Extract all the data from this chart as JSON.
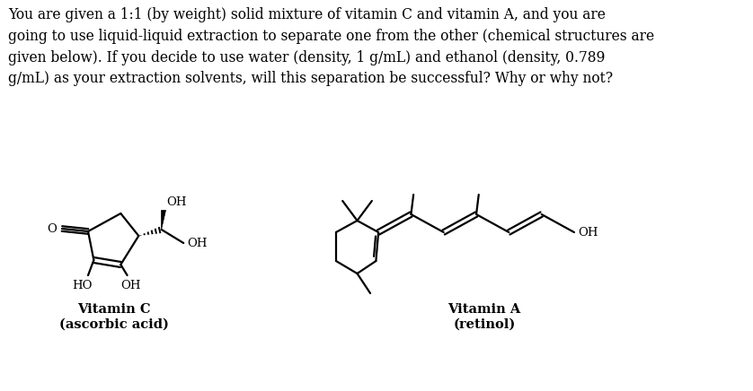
{
  "background_color": "#ffffff",
  "text_paragraph": "You are given a 1:1 (by weight) solid mixture of vitamin C and vitamin A, and you are\ngoing to use liquid-liquid extraction to separate one from the other (chemical structures are\ngiven below). If you decide to use water (density, 1 g/mL) and ethanol (density, 0.789\ng/mL) as your extraction solvents, will this separation be successful? Why or why not?",
  "label_vitc": "Vitamin C\n(ascorbic acid)",
  "label_vita": "Vitamin A\n(retinol)",
  "text_fontsize": 11.2,
  "label_fontsize": 10.5,
  "font_family": "DejaVu Serif"
}
